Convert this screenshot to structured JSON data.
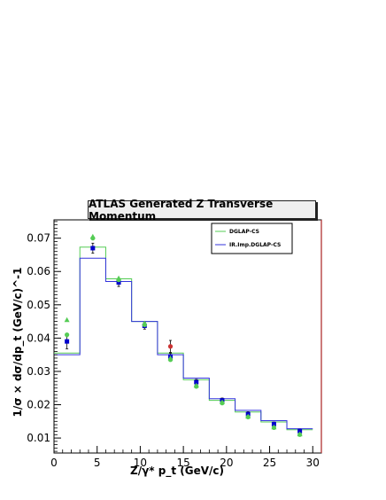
{
  "chart_data": {
    "type": "line",
    "title": "ATLAS Generated Z Transverse Momentum",
    "xlabel": "Z/γ* p_t (GeV/c)",
    "ylabel": "1/σ × dσ/dp_t (GeV/c)^-1",
    "xlim": [
      0,
      31
    ],
    "ylim": [
      0.0055,
      0.0755
    ],
    "x_ticks": [
      "0",
      "5",
      "10",
      "15",
      "20",
      "25",
      "30"
    ],
    "y_ticks": [
      "0.01",
      "0.02",
      "0.03",
      "0.04",
      "0.05",
      "0.06",
      "0.07"
    ],
    "bin_edges": [
      0,
      3,
      6,
      9,
      12,
      15,
      18,
      21,
      24,
      27,
      30
    ],
    "series": [
      {
        "name": "DGLAP-CS",
        "kind": "histogram",
        "color": "#55cc55",
        "values": [
          0.0355,
          0.0673,
          0.0578,
          0.045,
          0.0355,
          0.0275,
          0.0213,
          0.0178,
          0.0148,
          0.0125
        ]
      },
      {
        "name": "IR.Imp.DGLAP-CS",
        "kind": "histogram",
        "color": "#3333dd",
        "values": [
          0.035,
          0.064,
          0.057,
          0.045,
          0.035,
          0.028,
          0.0218,
          0.0183,
          0.0152,
          0.0128
        ]
      },
      {
        "kind": "markers",
        "marker": "square",
        "color": "#0000cc",
        "x": [
          1.5,
          4.5,
          7.5,
          10.5,
          13.5,
          16.5,
          19.5,
          22.5,
          25.5,
          28.5
        ],
        "values": [
          0.039,
          0.067,
          0.0567,
          0.0437,
          0.0345,
          0.0268,
          0.0213,
          0.0172,
          0.0142,
          0.0121
        ],
        "errors": [
          0.0022,
          0.0015,
          0.0012,
          0.001,
          0.0009,
          0.0008,
          0.0007,
          0.0007,
          0.0006,
          0.0006
        ]
      },
      {
        "kind": "markers",
        "marker": "circle",
        "color": "#cc3333",
        "x": [
          13.5
        ],
        "values": [
          0.0375
        ],
        "errors": [
          0.0018
        ]
      },
      {
        "kind": "markers",
        "marker": "triangle",
        "color": "#55cc55",
        "x": [
          1.5,
          4.5,
          7.5,
          10.5,
          13.5,
          16.5,
          19.5,
          22.5,
          25.5,
          28.5
        ],
        "values": [
          0.0455,
          0.0705,
          0.058,
          0.0445,
          0.034,
          0.0258,
          0.0208,
          0.0165,
          0.0133,
          0.0112
        ]
      },
      {
        "kind": "markers",
        "marker": "circle",
        "color": "#55cc55",
        "x": [
          1.5,
          4.5,
          7.5,
          10.5,
          13.5,
          16.5,
          19.5,
          22.5,
          25.5,
          28.5
        ],
        "values": [
          0.041,
          0.07,
          0.0575,
          0.044,
          0.0335,
          0.0255,
          0.0205,
          0.0163,
          0.0131,
          0.011
        ]
      }
    ],
    "legend": [
      "DGLAP-CS",
      "IR.Imp.DGLAP-CS"
    ],
    "legend_position": "top-right",
    "frame_right_color": "#aa2222",
    "grid": false
  }
}
